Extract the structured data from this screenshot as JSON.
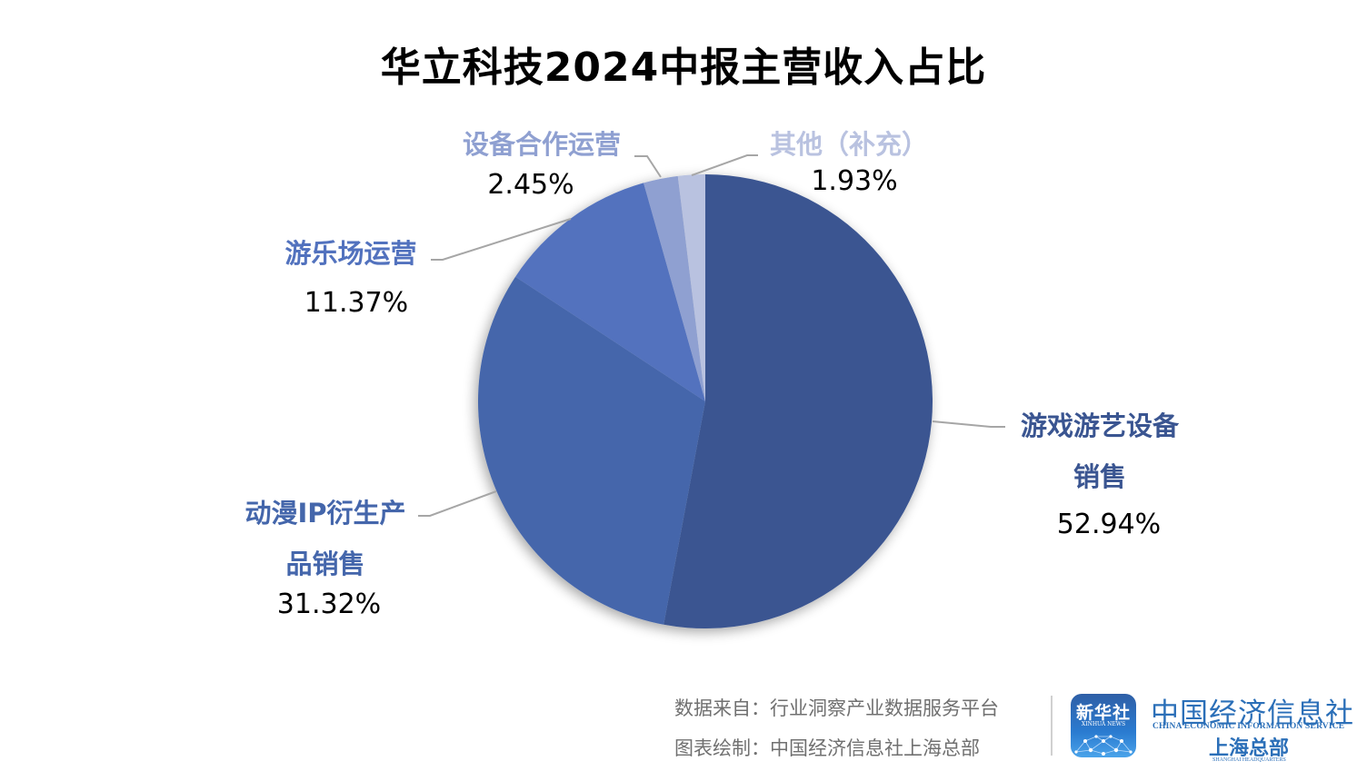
{
  "title": "华立科技2024中报主营收入占比",
  "chart_data": {
    "type": "pie",
    "title": "华立科技2024中报主营收入占比",
    "start_angle_deg": 0,
    "direction": "clockwise",
    "categories": [
      "游戏游艺设备销售",
      "动漫IP衍生产品销售",
      "游乐场运营",
      "设备合作运营",
      "其他（补充）"
    ],
    "values": [
      52.94,
      31.32,
      11.37,
      2.45,
      1.93
    ],
    "unit": "%",
    "colors": [
      "#3A5591",
      "#4466AB",
      "#5272BE",
      "#8FA0D1",
      "#B9C2E0"
    ],
    "labels": [
      {
        "name_lines": [
          "游戏游艺设备",
          "销售"
        ],
        "pct": "52.94%",
        "color": "#3A5591"
      },
      {
        "name_lines": [
          "动漫IP衍生产",
          "品销售"
        ],
        "pct": "31.32%",
        "color": "#4466AB"
      },
      {
        "name_lines": [
          "游乐场运营"
        ],
        "pct": "11.37%",
        "color": "#5272BE"
      },
      {
        "name_lines": [
          "设备合作运营"
        ],
        "pct": "2.45%",
        "color": "#8FA0D1"
      },
      {
        "name_lines": [
          "其他（补充）"
        ],
        "pct": "1.93%",
        "color": "#B9C2E0"
      }
    ],
    "legend": "none",
    "leader_line_color": "#A6A6A6"
  },
  "footer": {
    "source": "数据来自：行业洞察产业数据服务平台",
    "credit": "图表绘制：中国经济信息社上海总部",
    "xinhua_logo_cn": "新华社",
    "xinhua_logo_en": "XINHUA NEWS",
    "org_cn": "中国经济信息社",
    "org_en": "CHINA ECONOMIC INFORMATION SERVICE",
    "org_sub_cn": "上海总部",
    "org_sub_en": "SHANGHAI HEADQUARTERS"
  }
}
